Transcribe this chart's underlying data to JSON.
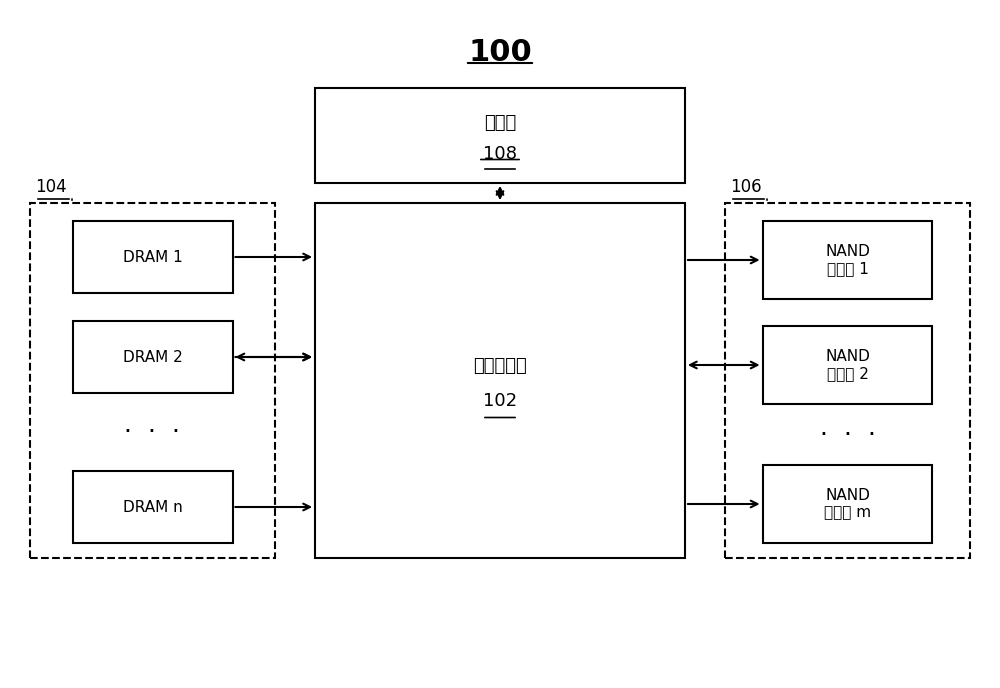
{
  "title": "100",
  "background_color": "#ffffff",
  "fig_width": 10.0,
  "fig_height": 6.88,
  "processor_label": "处理器\n108",
  "processor_underline": "108",
  "controller_label": "混合控制器\n102",
  "controller_underline": "102",
  "dram_group_label": "104",
  "nand_group_label": "106",
  "dram_boxes": [
    "DRAM 1",
    "DRAM 2",
    "DRAM n"
  ],
  "nand_boxes": [
    "NAND\n存储器 1",
    "NAND\n存储器 2",
    "NAND\n存储器 m"
  ],
  "dots": "·  ·  ·",
  "colors": {
    "box_edge": "#000000",
    "box_fill": "#ffffff",
    "dashed_edge": "#000000",
    "text": "#000000",
    "arrow": "#000000"
  },
  "font_sizes": {
    "title": 22,
    "label": 13,
    "small_label": 11,
    "group_label": 12,
    "dots": 18
  }
}
